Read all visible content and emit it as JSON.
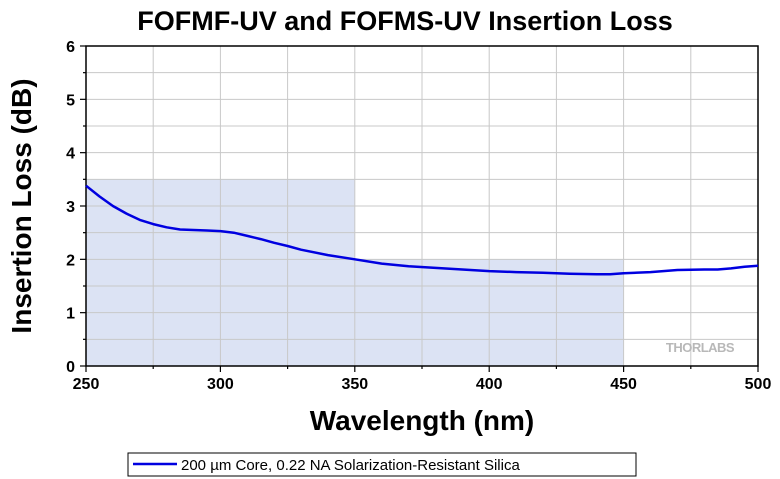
{
  "chart_data": {
    "type": "line",
    "title": "FOFMF-UV and FOFMS-UV Insertion Loss",
    "xlabel": "Wavelength (nm)",
    "ylabel": "Insertion Loss (dB)",
    "xlim": [
      250,
      500
    ],
    "ylim": [
      0,
      6
    ],
    "xticks": [
      250,
      300,
      350,
      400,
      450,
      500
    ],
    "yticks": [
      0,
      1,
      2,
      3,
      4,
      5,
      6
    ],
    "grid": true,
    "legend_position": "bottom",
    "shaded_regions": [
      {
        "x": [
          250,
          350
        ],
        "y": [
          0,
          3.5
        ],
        "color": "#dce3f4"
      },
      {
        "x": [
          350,
          450
        ],
        "y": [
          0,
          2.0
        ],
        "color": "#dce3f4"
      }
    ],
    "series": [
      {
        "name": "200 µm Core, 0.22 NA Solarization-Resistant Silica",
        "color": "#0000e0",
        "x": [
          250,
          255,
          260,
          265,
          270,
          275,
          280,
          285,
          290,
          295,
          300,
          305,
          310,
          315,
          320,
          325,
          330,
          340,
          350,
          360,
          370,
          380,
          390,
          400,
          410,
          420,
          430,
          440,
          445,
          450,
          460,
          470,
          480,
          485,
          490,
          495,
          500
        ],
        "y": [
          3.38,
          3.18,
          3.0,
          2.86,
          2.74,
          2.66,
          2.6,
          2.56,
          2.55,
          2.54,
          2.53,
          2.5,
          2.44,
          2.38,
          2.31,
          2.25,
          2.18,
          2.08,
          2.0,
          1.92,
          1.87,
          1.84,
          1.81,
          1.78,
          1.76,
          1.75,
          1.73,
          1.72,
          1.72,
          1.74,
          1.76,
          1.8,
          1.81,
          1.81,
          1.83,
          1.86,
          1.88
        ]
      }
    ]
  },
  "logo": {
    "text": "THORLABS"
  }
}
